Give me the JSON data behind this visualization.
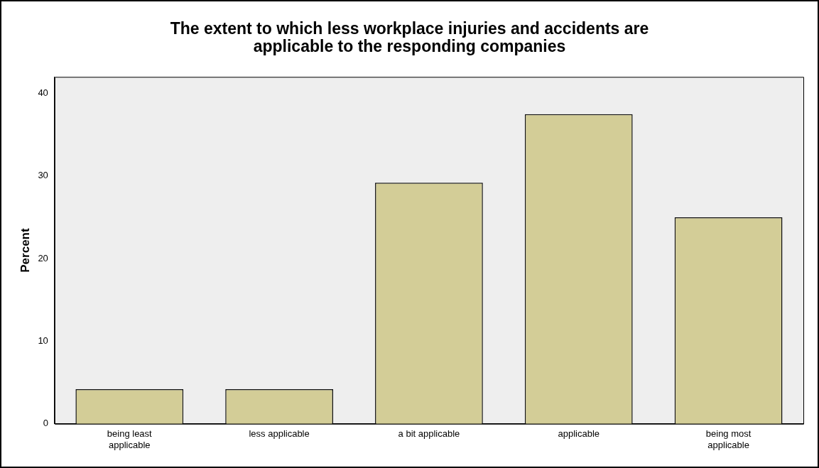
{
  "chart_data": {
    "type": "bar",
    "title": "The extent to which less workplace injuries and accidents are applicable to the responding companies",
    "ylabel": "Percent",
    "categories": [
      "being least applicable",
      "less applicable",
      "a bit applicable",
      "applicable",
      "being most applicable"
    ],
    "values": [
      4.2,
      4.2,
      29.2,
      37.5,
      25
    ],
    "color": "#d3cd97",
    "ylim": [
      0,
      42
    ],
    "yticks": [
      0,
      10,
      20,
      30,
      40
    ],
    "grid": false,
    "legend": false
  }
}
